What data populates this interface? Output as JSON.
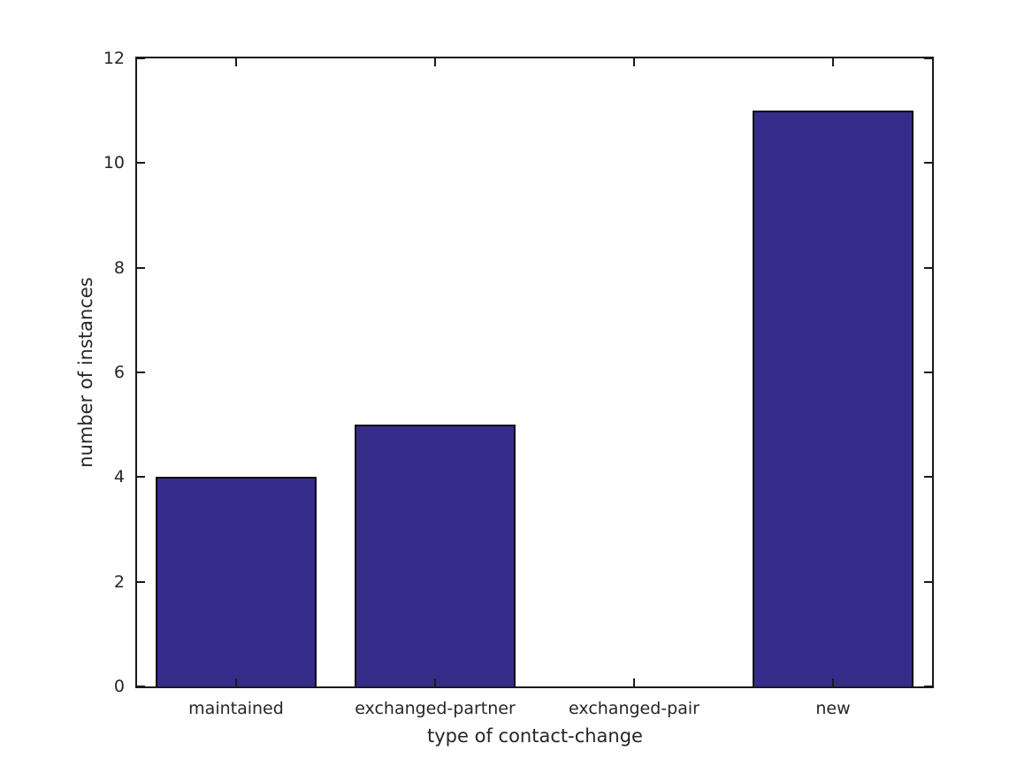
{
  "chart_data": {
    "type": "bar",
    "title": "",
    "categories": [
      "maintained",
      "exchanged-partner",
      "exchanged-pair",
      "new"
    ],
    "values": [
      4,
      5,
      0,
      11
    ],
    "xlabel": "type of contact-change",
    "ylabel": "number of instances",
    "ylim": [
      0,
      12
    ],
    "yticks": [
      0,
      2,
      4,
      6,
      8,
      10,
      12
    ],
    "bar_width_fraction": 0.81,
    "bar_color": "#352C8A",
    "bar_edge_color": "#0a0a14",
    "axis_color": "#1a1a1a",
    "text_color": "#262626",
    "background_color": "#ffffff",
    "grid": false,
    "legend": null,
    "tick_direction": "in",
    "ticks_mirrored_top_right": true
  }
}
